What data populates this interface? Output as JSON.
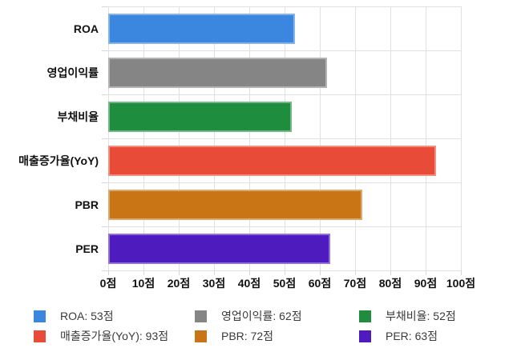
{
  "chart_data": {
    "type": "bar",
    "orientation": "horizontal",
    "title": "",
    "xlabel": "",
    "ylabel": "",
    "unit": "점",
    "categories": [
      "ROA",
      "영업이익률",
      "부채비율",
      "매출증가율(YoY)",
      "PBR",
      "PER"
    ],
    "values": [
      53,
      62,
      52,
      93,
      72,
      63
    ],
    "colors": [
      "#3B87E0",
      "#858585",
      "#1E8E3E",
      "#E84B37",
      "#C97516",
      "#4E1BBE"
    ],
    "xlim": [
      0,
      100
    ],
    "x_tick_step": 10,
    "x_tick_labels": [
      "0점",
      "10점",
      "20점",
      "30점",
      "40점",
      "50점",
      "60점",
      "70점",
      "80점",
      "90점",
      "100점"
    ],
    "grid": true,
    "legend_position": "bottom",
    "legend": [
      {
        "label": "ROA: 53점",
        "color": "#3B87E0"
      },
      {
        "label": "영업이익률: 62점",
        "color": "#858585"
      },
      {
        "label": "부채비율: 52점",
        "color": "#1E8E3E"
      },
      {
        "label": "매출증가율(YoY): 93점",
        "color": "#E84B37"
      },
      {
        "label": "PBR: 72점",
        "color": "#C97516"
      },
      {
        "label": "PER: 63점",
        "color": "#4E1BBE"
      }
    ]
  }
}
